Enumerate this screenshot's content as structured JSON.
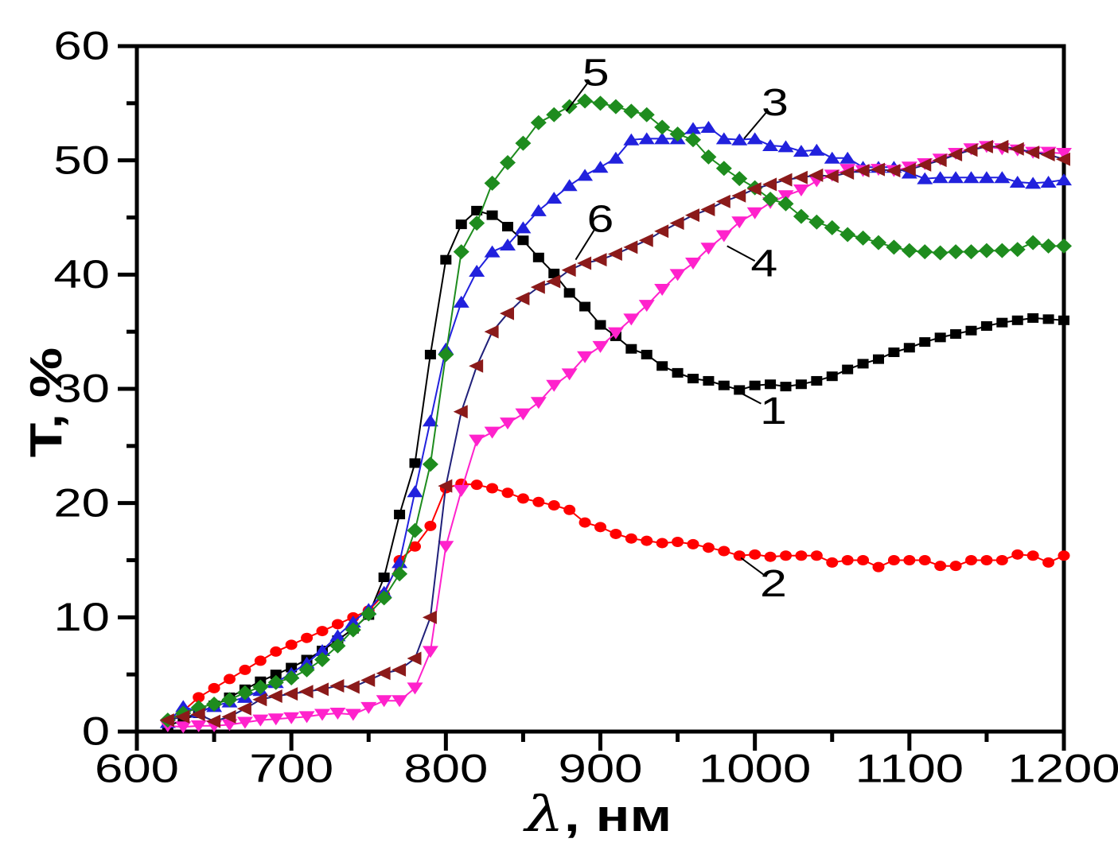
{
  "figure": {
    "background": "#FFFFFF",
    "xlabel_symbol": "λ",
    "xlabel_rest": ", нм",
    "ylabel": "T, %",
    "text_color": "#000000"
  },
  "chart_data": {
    "type": "line",
    "title": "",
    "xlabel": "λ, нм",
    "ylabel": "T, %",
    "xlim": [
      600,
      1200
    ],
    "ylim": [
      0,
      60
    ],
    "x_major_ticks": [
      600,
      700,
      800,
      900,
      1000,
      1100,
      1200
    ],
    "x_minor_step": 50,
    "y_major_ticks": [
      0,
      10,
      20,
      30,
      40,
      50,
      60
    ],
    "y_minor_step": 5,
    "grid": false,
    "frame": true,
    "legend": "numeric labels with leader lines beside curves",
    "x": [
      620,
      630,
      640,
      650,
      660,
      670,
      680,
      690,
      700,
      710,
      720,
      730,
      740,
      750,
      760,
      770,
      780,
      790,
      800,
      810,
      820,
      830,
      840,
      850,
      860,
      870,
      880,
      890,
      900,
      910,
      920,
      930,
      940,
      950,
      960,
      970,
      980,
      990,
      1000,
      1010,
      1020,
      1030,
      1040,
      1050,
      1060,
      1070,
      1080,
      1090,
      1100,
      1110,
      1120,
      1130,
      1140,
      1150,
      1160,
      1170,
      1180,
      1190,
      1200
    ],
    "series": [
      {
        "name": "1",
        "marker": "square",
        "color": "#000000",
        "line_color": "#000000",
        "values": [
          0.5,
          1.0,
          1.6,
          2.3,
          3.0,
          3.7,
          4.4,
          5.0,
          5.6,
          6.3,
          7.1,
          8.0,
          9.0,
          10.2,
          13.5,
          19.0,
          23.5,
          33.0,
          41.3,
          44.4,
          45.6,
          45.2,
          44.2,
          43.0,
          41.5,
          40.1,
          38.4,
          37.2,
          35.6,
          34.6,
          33.5,
          33.0,
          32.0,
          31.4,
          30.9,
          30.7,
          30.3,
          29.9,
          30.3,
          30.4,
          30.2,
          30.4,
          30.7,
          31.1,
          31.7,
          32.2,
          32.6,
          33.2,
          33.6,
          34.1,
          34.5,
          34.8,
          35.1,
          35.5,
          35.8,
          36.0,
          36.2,
          36.1,
          36.0
        ]
      },
      {
        "name": "2",
        "marker": "circle",
        "color": "#FF0000",
        "line_color": "#FF0000",
        "values": [
          0.8,
          1.8,
          3.0,
          3.8,
          4.6,
          5.4,
          6.2,
          7.0,
          7.6,
          8.2,
          8.8,
          9.4,
          10.0,
          10.6,
          12.0,
          15.0,
          16.2,
          18.0,
          21.3,
          21.7,
          21.6,
          21.3,
          20.9,
          20.4,
          20.1,
          19.8,
          19.4,
          18.3,
          17.9,
          17.3,
          16.9,
          16.7,
          16.5,
          16.6,
          16.4,
          16.1,
          15.8,
          15.4,
          15.5,
          15.3,
          15.4,
          15.4,
          15.4,
          14.8,
          15.0,
          15.0,
          14.4,
          15.0,
          15.0,
          15.0,
          14.5,
          14.5,
          15.0,
          15.0,
          15.0,
          15.5,
          15.4,
          14.8,
          15.4
        ]
      },
      {
        "name": "3",
        "marker": "triangle-up",
        "color": "#2121DD",
        "line_color": "#2121DD",
        "values": [
          0.8,
          2.2,
          1.7,
          2.2,
          2.6,
          3.0,
          3.6,
          4.3,
          5.1,
          6.0,
          7.1,
          8.4,
          9.6,
          10.7,
          12.2,
          14.8,
          21.0,
          27.2,
          33.5,
          37.6,
          40.3,
          42.0,
          42.6,
          44.1,
          45.6,
          46.7,
          47.8,
          48.7,
          49.4,
          50.2,
          51.8,
          51.9,
          51.9,
          51.9,
          52.8,
          52.9,
          51.9,
          51.8,
          51.9,
          51.3,
          51.2,
          50.8,
          50.9,
          50.2,
          50.2,
          49.4,
          49.4,
          49.4,
          48.9,
          48.4,
          48.5,
          48.5,
          48.5,
          48.5,
          48.5,
          48.1,
          48.0,
          48.1,
          48.3
        ]
      },
      {
        "name": "4",
        "marker": "triangle-down",
        "color": "#FF22CC",
        "line_color": "#FF22CC",
        "values": [
          0.5,
          0.4,
          0.5,
          0.5,
          0.6,
          0.8,
          1.0,
          1.1,
          1.2,
          1.3,
          1.5,
          1.6,
          1.5,
          2.1,
          2.7,
          2.7,
          3.8,
          7.0,
          16.2,
          21.1,
          25.5,
          26.2,
          27.0,
          27.8,
          28.8,
          30.3,
          31.3,
          32.8,
          33.7,
          34.9,
          36.1,
          37.3,
          38.7,
          40.0,
          41.0,
          42.3,
          43.4,
          44.6,
          45.4,
          46.3,
          46.9,
          47.4,
          48.2,
          48.7,
          49.2,
          49.1,
          49.2,
          49.1,
          49.4,
          49.7,
          50.1,
          50.6,
          51.0,
          51.2,
          51.0,
          50.9,
          50.7,
          50.7,
          50.6
        ]
      },
      {
        "name": "5",
        "marker": "diamond",
        "color": "#1E8C1E",
        "line_color": "#1E8C1E",
        "values": [
          1.0,
          1.6,
          2.1,
          2.4,
          2.8,
          3.4,
          3.9,
          4.3,
          4.7,
          5.4,
          6.3,
          7.5,
          8.9,
          10.3,
          11.7,
          13.8,
          17.6,
          23.4,
          33.0,
          42.0,
          44.5,
          48.0,
          49.8,
          51.5,
          53.3,
          54.0,
          54.7,
          55.2,
          55.0,
          54.7,
          54.3,
          54.0,
          52.9,
          52.3,
          51.8,
          50.3,
          49.3,
          48.4,
          47.6,
          46.6,
          46.2,
          45.1,
          44.6,
          44.1,
          43.5,
          43.2,
          42.8,
          42.4,
          42.1,
          42.0,
          41.9,
          42.0,
          42.0,
          42.1,
          42.1,
          42.2,
          42.8,
          42.5,
          42.5
        ]
      },
      {
        "name": "6",
        "marker": "triangle-left",
        "color": "#8B1A1A",
        "line_color": "#20207A",
        "values": [
          1.0,
          1.3,
          1.5,
          0.9,
          1.3,
          2.0,
          2.8,
          3.1,
          3.3,
          3.5,
          3.7,
          4.0,
          3.9,
          4.5,
          5.1,
          5.4,
          6.4,
          10.0,
          21.5,
          28.0,
          32.0,
          35.0,
          36.6,
          37.9,
          38.9,
          39.4,
          40.4,
          41.0,
          41.3,
          41.8,
          42.4,
          43.0,
          43.8,
          44.5,
          45.2,
          45.7,
          46.4,
          46.9,
          47.5,
          47.9,
          48.3,
          48.5,
          48.7,
          48.6,
          48.9,
          49.1,
          49.2,
          49.1,
          49.2,
          49.6,
          50.0,
          50.5,
          50.9,
          51.2,
          51.2,
          51.0,
          50.7,
          50.5,
          50.1
        ]
      }
    ],
    "annotations": [
      {
        "text": "1",
        "x": 1012,
        "y": 28.1,
        "leader": [
          [
            990,
            29.7
          ],
          [
            1004,
            28.7
          ]
        ]
      },
      {
        "text": "2",
        "x": 1012,
        "y": 13.0,
        "leader": [
          [
            991,
            15.2
          ],
          [
            1007,
            13.6
          ]
        ]
      },
      {
        "text": "3",
        "x": 1013,
        "y": 55.1,
        "leader": [
          [
            993,
            51.9
          ],
          [
            1008,
            54.3
          ]
        ]
      },
      {
        "text": "4",
        "x": 1006,
        "y": 41.0,
        "leader": [
          [
            982,
            42.5
          ],
          [
            1000,
            41.2
          ]
        ]
      },
      {
        "text": "5",
        "x": 897,
        "y": 57.7,
        "leader": [
          [
            878,
            54.3
          ],
          [
            893,
            57.0
          ]
        ]
      },
      {
        "text": "6",
        "x": 900,
        "y": 44.9,
        "leader": [
          [
            884,
            41.3
          ],
          [
            896,
            43.9
          ]
        ]
      }
    ]
  }
}
